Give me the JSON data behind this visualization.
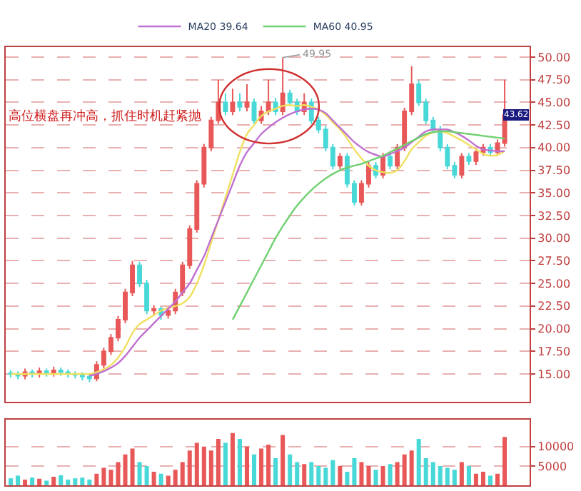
{
  "chart_data": [
    {
      "type": "candlestick",
      "categories": [
        null,
        null,
        null,
        null,
        null,
        null,
        null,
        null,
        null,
        null,
        null,
        null,
        null,
        null,
        null,
        null,
        null,
        null,
        null,
        null,
        null,
        null,
        null,
        null,
        null,
        null,
        null,
        null,
        null,
        null,
        null,
        null,
        null,
        null,
        null,
        null,
        null,
        null,
        null,
        null,
        null,
        null,
        null,
        null,
        null,
        null,
        null,
        null,
        null,
        null,
        null,
        null,
        null,
        null,
        null,
        null,
        null,
        null,
        null,
        null,
        null,
        null,
        null,
        null,
        null,
        null,
        null,
        null,
        null,
        null
      ],
      "ohlc": [
        [
          15.1,
          15.4,
          14.6,
          15
        ],
        [
          15,
          15.3,
          14.4,
          14.8
        ],
        [
          14.8,
          15.6,
          14.4,
          15.2
        ],
        [
          15.2,
          15.5,
          14.6,
          15
        ],
        [
          15,
          15.7,
          14.6,
          15.3
        ],
        [
          15.3,
          15.6,
          14.7,
          15.1
        ],
        [
          15.1,
          15.8,
          14.7,
          15.4
        ],
        [
          15.4,
          15.7,
          14.8,
          15.2
        ],
        [
          15.2,
          15.5,
          14.6,
          15
        ],
        [
          15,
          15.3,
          14.5,
          14.9
        ],
        [
          14.9,
          15.2,
          14.3,
          14.7
        ],
        [
          14.7,
          15,
          14.1,
          14.5
        ],
        [
          14.5,
          16.4,
          14.2,
          16
        ],
        [
          16,
          17.9,
          15.6,
          17.5
        ],
        [
          17.5,
          19.4,
          17.1,
          19
        ],
        [
          19,
          21.4,
          18.6,
          21
        ],
        [
          21,
          24.4,
          20.6,
          24
        ],
        [
          24,
          27.5,
          23.6,
          27
        ],
        [
          27,
          27.4,
          24.6,
          25
        ],
        [
          25,
          25.4,
          21.6,
          22
        ],
        [
          22,
          22.6,
          21.4,
          22.2
        ],
        [
          22.2,
          22.4,
          21,
          21.5
        ],
        [
          21.5,
          22.4,
          21.1,
          22
        ],
        [
          22,
          24.4,
          21.6,
          24
        ],
        [
          24,
          27.4,
          23.6,
          27
        ],
        [
          27,
          31.4,
          26.6,
          31
        ],
        [
          31,
          36.4,
          30.6,
          36
        ],
        [
          36,
          40.4,
          35.6,
          40
        ],
        [
          40,
          43.4,
          39.6,
          43
        ],
        [
          43,
          47.5,
          42.6,
          45
        ],
        [
          45,
          46,
          43.6,
          44
        ],
        [
          44,
          46.5,
          43.6,
          45
        ],
        [
          45,
          46,
          44,
          44.5
        ],
        [
          44.5,
          47,
          44,
          45
        ],
        [
          45,
          45.4,
          42.6,
          43
        ],
        [
          43,
          44.6,
          42.6,
          44
        ],
        [
          44,
          47.5,
          43.6,
          45
        ],
        [
          45,
          45.5,
          43.6,
          44
        ],
        [
          44,
          49.95,
          43.6,
          46
        ],
        [
          46,
          46.4,
          44.6,
          45
        ],
        [
          45,
          45.4,
          43.6,
          44
        ],
        [
          44,
          46,
          43.6,
          45
        ],
        [
          45,
          45.4,
          42.6,
          43
        ],
        [
          43,
          43.4,
          41.6,
          42
        ],
        [
          42,
          42.4,
          39.6,
          40
        ],
        [
          40,
          40.4,
          37.6,
          38
        ],
        [
          38,
          39.4,
          37.6,
          39
        ],
        [
          39,
          39.4,
          35.6,
          36
        ],
        [
          36,
          36.4,
          33.6,
          34
        ],
        [
          34,
          36.4,
          33.6,
          36
        ],
        [
          36,
          38.4,
          35.6,
          38
        ],
        [
          38,
          38.4,
          36.6,
          37
        ],
        [
          37,
          39.4,
          36.6,
          39
        ],
        [
          39,
          39.4,
          37.6,
          38
        ],
        [
          38,
          40.4,
          37.6,
          40
        ],
        [
          40,
          44.4,
          39.6,
          44
        ],
        [
          44,
          49,
          43.6,
          47
        ],
        [
          47,
          47.4,
          44.6,
          45
        ],
        [
          45,
          45.4,
          42.6,
          43
        ],
        [
          43,
          43.4,
          41.6,
          42
        ],
        [
          42,
          42.4,
          39.6,
          40
        ],
        [
          40,
          40.4,
          37.6,
          38
        ],
        [
          38,
          38.4,
          36.6,
          37
        ],
        [
          37,
          39.4,
          36.6,
          39
        ],
        [
          39,
          39.4,
          38.1,
          38.5
        ],
        [
          38.5,
          39.9,
          38.1,
          39.5
        ],
        [
          39.5,
          40.4,
          39.1,
          40
        ],
        [
          40,
          40.4,
          39.1,
          39.5
        ],
        [
          39.5,
          40.9,
          39.1,
          40.5
        ],
        [
          40.5,
          47.5,
          40.1,
          43.62
        ]
      ],
      "colors": [
        "#48d8d8",
        "#48d8d8",
        "#e85858",
        "#48d8d8",
        "#e85858",
        "#48d8d8",
        "#e85858",
        "#48d8d8",
        "#48d8d8",
        "#48d8d8",
        "#48d8d8",
        "#48d8d8",
        "#e85858",
        "#e85858",
        "#e85858",
        "#e85858",
        "#e85858",
        "#e85858",
        "#48d8d8",
        "#48d8d8",
        "#e85858",
        "#48d8d8",
        "#e85858",
        "#e85858",
        "#e85858",
        "#e85858",
        "#e85858",
        "#e85858",
        "#e85858",
        "#e85858",
        "#48d8d8",
        "#e85858",
        "#48d8d8",
        "#e85858",
        "#48d8d8",
        "#e85858",
        "#e85858",
        "#48d8d8",
        "#e85858",
        "#48d8d8",
        "#48d8d8",
        "#e85858",
        "#48d8d8",
        "#48d8d8",
        "#48d8d8",
        "#48d8d8",
        "#e85858",
        "#48d8d8",
        "#48d8d8",
        "#e85858",
        "#e85858",
        "#48d8d8",
        "#e85858",
        "#48d8d8",
        "#e85858",
        "#e85858",
        "#e85858",
        "#48d8d8",
        "#48d8d8",
        "#48d8d8",
        "#48d8d8",
        "#48d8d8",
        "#48d8d8",
        "#e85858",
        "#48d8d8",
        "#e85858",
        "#e85858",
        "#48d8d8",
        "#e85858",
        "#e85858"
      ],
      "series": [
        {
          "type": "line",
          "color": "#f0e060",
          "values": [
            15,
            15,
            15,
            15,
            15,
            15,
            15,
            15,
            15,
            15,
            15,
            15,
            15.2,
            15.5,
            16,
            16.8,
            18,
            19.5,
            20.5,
            21,
            21.5,
            22,
            22.3,
            22.5,
            22.8,
            23.5,
            25,
            27,
            29.5,
            32,
            34.5,
            37,
            39.5,
            41.5,
            42.5,
            43.5,
            44,
            44.3,
            44.6,
            44.7,
            44.6,
            44.7,
            44.5,
            44.2,
            43.6,
            42.8,
            42,
            41,
            39.8,
            38.8,
            38,
            37.5,
            37.3,
            37.2,
            37.5,
            38.5,
            39.8,
            40.6,
            41.3,
            41.7,
            41.8,
            41.6,
            41.2,
            40.8,
            40.3,
            39.8,
            39.3,
            39.1,
            39.2,
            39.6
          ]
        },
        {
          "type": "line",
          "name": "MA20 39.64",
          "color": "#c070d0",
          "values": [
            null,
            null,
            null,
            null,
            null,
            null,
            null,
            null,
            null,
            null,
            null,
            14.8,
            15,
            15.3,
            15.7,
            16.2,
            17,
            18,
            19,
            19.8,
            20.6,
            21.4,
            22.2,
            23,
            24,
            25,
            26.5,
            28,
            30,
            32,
            34,
            36,
            38,
            39.5,
            40.5,
            41.5,
            42.2,
            42.8,
            43.3,
            43.7,
            44,
            44.2,
            44.3,
            44.2,
            43.8,
            43,
            42.2,
            41.4,
            40.6,
            40,
            39.5,
            39.2,
            39,
            39.3,
            39.6,
            40,
            40.6,
            41.2,
            41.8,
            42,
            42,
            42,
            41.7,
            41.3,
            40.8,
            40.2,
            39.8,
            39.7,
            39.6,
            39.6
          ]
        },
        {
          "type": "line",
          "name": "MA60 40.95",
          "color": "#70d070",
          "values": [
            null,
            null,
            null,
            null,
            null,
            null,
            null,
            null,
            null,
            null,
            null,
            null,
            null,
            null,
            null,
            null,
            null,
            null,
            null,
            null,
            null,
            null,
            null,
            null,
            null,
            null,
            null,
            null,
            null,
            null,
            null,
            21,
            22.5,
            24,
            25.5,
            27,
            28.5,
            30,
            31.3,
            32.5,
            33.6,
            34.5,
            35.3,
            36,
            36.6,
            37.1,
            37.5,
            37.8,
            38,
            38.2,
            38.5,
            38.8,
            39.1,
            39.5,
            39.9,
            40.3,
            40.7,
            41.1,
            41.5,
            41.7,
            41.8,
            41.8,
            41.7,
            41.6,
            41.5,
            41.4,
            41.3,
            41.2,
            41.1,
            41.0
          ]
        }
      ],
      "annotations": [
        "高位横盘再冲高，抓住时机赶紧抛",
        "49.95",
        {
          "text": "43.62",
          "y": 43.62
        }
      ],
      "ylim": [
        11.9,
        51.1
      ],
      "yticks": [
        {
          "value": 15,
          "label": "15.00"
        },
        {
          "value": 17.5,
          "label": "17.50"
        },
        {
          "value": 20,
          "label": "20.00"
        },
        {
          "value": 22.5,
          "label": "22.50"
        },
        {
          "value": 25,
          "label": "25.00"
        },
        {
          "value": 27.5,
          "label": "27.50"
        },
        {
          "value": 30,
          "label": "30.00"
        },
        {
          "value": 32.5,
          "label": "32.50"
        },
        {
          "value": 35,
          "label": "35.00"
        },
        {
          "value": 37.5,
          "label": "37.50"
        },
        {
          "value": 40,
          "label": "40.00"
        },
        {
          "value": 42.5,
          "label": "42.50"
        },
        {
          "value": 45,
          "label": "45.00"
        },
        {
          "value": 47.5,
          "label": "47.50"
        },
        {
          "value": 50,
          "label": "50.00"
        }
      ],
      "grid": "y",
      "legend": "top left",
      "tick_labels": "y"
    },
    {
      "type": "bar",
      "categories": [
        null,
        null,
        null,
        null,
        null,
        null,
        null,
        null,
        null,
        null,
        null,
        null,
        null,
        null,
        null,
        null,
        null,
        null,
        null,
        null,
        null,
        null,
        null,
        null,
        null,
        null,
        null,
        null,
        null,
        null,
        null,
        null,
        null,
        null,
        null,
        null,
        null,
        null,
        null,
        null,
        null,
        null,
        null,
        null,
        null,
        null,
        null,
        null,
        null,
        null,
        null,
        null,
        null,
        null,
        null,
        null,
        null,
        null,
        null,
        null,
        null,
        null,
        null,
        null,
        null,
        null,
        null,
        null,
        null,
        null
      ],
      "values": [
        1800,
        2500,
        1500,
        2000,
        1700,
        1200,
        2200,
        2600,
        1500,
        1800,
        2000,
        1500,
        3000,
        4500,
        4000,
        6000,
        8000,
        9500,
        6000,
        5000,
        3500,
        3000,
        2500,
        4000,
        6000,
        9000,
        11000,
        10000,
        9000,
        12000,
        11000,
        13500,
        12000,
        10000,
        8000,
        9500,
        10500,
        7000,
        13000,
        8000,
        6000,
        5500,
        6000,
        5000,
        4500,
        6500,
        5000,
        3500,
        7000,
        6000,
        5000,
        4000,
        5000,
        5500,
        6000,
        8000,
        9000,
        12000,
        7000,
        6000,
        5000,
        4500,
        4000,
        6000,
        5000,
        3000,
        3500,
        2500,
        3000,
        12500
      ],
      "colors": [
        "#48d8d8",
        "#48d8d8",
        "#e85858",
        "#48d8d8",
        "#e85858",
        "#48d8d8",
        "#e85858",
        "#48d8d8",
        "#48d8d8",
        "#48d8d8",
        "#48d8d8",
        "#48d8d8",
        "#e85858",
        "#e85858",
        "#e85858",
        "#e85858",
        "#e85858",
        "#e85858",
        "#48d8d8",
        "#48d8d8",
        "#e85858",
        "#48d8d8",
        "#e85858",
        "#e85858",
        "#e85858",
        "#e85858",
        "#e85858",
        "#e85858",
        "#e85858",
        "#e85858",
        "#48d8d8",
        "#e85858",
        "#48d8d8",
        "#e85858",
        "#48d8d8",
        "#e85858",
        "#e85858",
        "#48d8d8",
        "#e85858",
        "#48d8d8",
        "#48d8d8",
        "#e85858",
        "#48d8d8",
        "#48d8d8",
        "#48d8d8",
        "#48d8d8",
        "#e85858",
        "#48d8d8",
        "#48d8d8",
        "#e85858",
        "#e85858",
        "#48d8d8",
        "#e85858",
        "#48d8d8",
        "#e85858",
        "#e85858",
        "#e85858",
        "#48d8d8",
        "#48d8d8",
        "#48d8d8",
        "#48d8d8",
        "#48d8d8",
        "#48d8d8",
        "#e85858",
        "#48d8d8",
        "#e85858",
        "#e85858",
        "#48d8d8",
        "#e85858",
        "#e85858"
      ],
      "ylim": [
        0,
        17000
      ],
      "yticks": [
        5000,
        10000
      ],
      "grid": "y",
      "tick_labels": "y"
    }
  ]
}
